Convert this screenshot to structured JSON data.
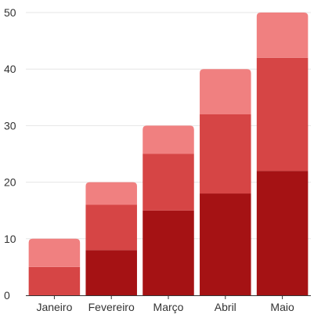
{
  "chart_data": {
    "type": "bar",
    "stacked": true,
    "title": "",
    "xlabel": "",
    "ylabel": "",
    "categories": [
      "Janeiro",
      "Fevereiro",
      "Março",
      "Abril",
      "Maio"
    ],
    "series": [
      {
        "values": [
          0,
          8,
          15,
          18,
          22
        ],
        "color": "#a51214"
      },
      {
        "values": [
          5,
          8,
          10,
          14,
          20
        ],
        "color": "#d64545"
      },
      {
        "values": [
          5,
          4,
          5,
          8,
          8
        ],
        "color": "#f08080"
      }
    ],
    "ylim": [
      0,
      50
    ],
    "yticks": [
      0,
      10,
      20,
      30,
      40,
      50
    ],
    "grid": true,
    "legend": "none"
  }
}
